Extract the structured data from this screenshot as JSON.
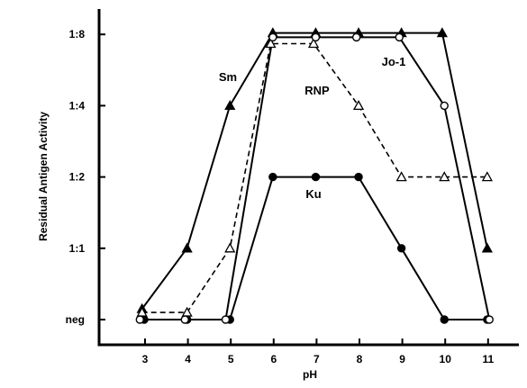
{
  "chart_data": {
    "type": "line",
    "xlabel": "pH",
    "ylabel": "Residual Antigen Activity",
    "x_ticks": [
      "3",
      "4",
      "5",
      "6",
      "7",
      "8",
      "9",
      "10",
      "11"
    ],
    "y_ticks": [
      "neg",
      "1:1",
      "1:2",
      "1:4",
      "1:8"
    ],
    "xlim": [
      2,
      11.8
    ],
    "ylim": [
      -0.2,
      4.3
    ],
    "y_scale_note": "log2 ordinal: neg=0, 1:1=1, 1:2=2, 1:4=3, 1:8=4",
    "grid": false,
    "legend": "none (series labelled directly on plot)",
    "series": [
      {
        "name": "Sm",
        "marker": "filled-triangle",
        "line": "solid",
        "x": [
          2.93,
          3.98,
          4.98,
          5.98,
          6.98,
          7.98,
          8.98,
          9.93,
          10.98
        ],
        "y": [
          0.15,
          1.0,
          3.0,
          4.02,
          4.02,
          4.02,
          4.02,
          4.02,
          1.0
        ]
      },
      {
        "name": "RNP",
        "marker": "open-triangle",
        "line": "dashed",
        "x": [
          2.93,
          3.98,
          4.98,
          5.93,
          6.93,
          7.98,
          8.98,
          9.98,
          10.98
        ],
        "y": [
          0.1,
          0.1,
          1.0,
          3.87,
          3.87,
          3.0,
          2.0,
          2.0,
          2.0
        ]
      },
      {
        "name": "Jo-1",
        "marker": "open-circle",
        "line": "solid",
        "x": [
          2.88,
          3.93,
          4.88,
          5.98,
          6.98,
          7.93,
          8.93,
          9.98,
          11.03
        ],
        "y": [
          0.0,
          0.0,
          0.0,
          3.96,
          3.96,
          3.96,
          3.96,
          3.0,
          0.0
        ]
      },
      {
        "name": "Ku",
        "marker": "filled-circle",
        "line": "solid",
        "x": [
          2.98,
          3.98,
          4.98,
          5.98,
          6.98,
          7.98,
          8.98,
          9.98,
          10.98
        ],
        "y": [
          0.0,
          0.0,
          0.0,
          2.0,
          2.0,
          2.0,
          1.0,
          0.0,
          0.0
        ]
      }
    ]
  }
}
